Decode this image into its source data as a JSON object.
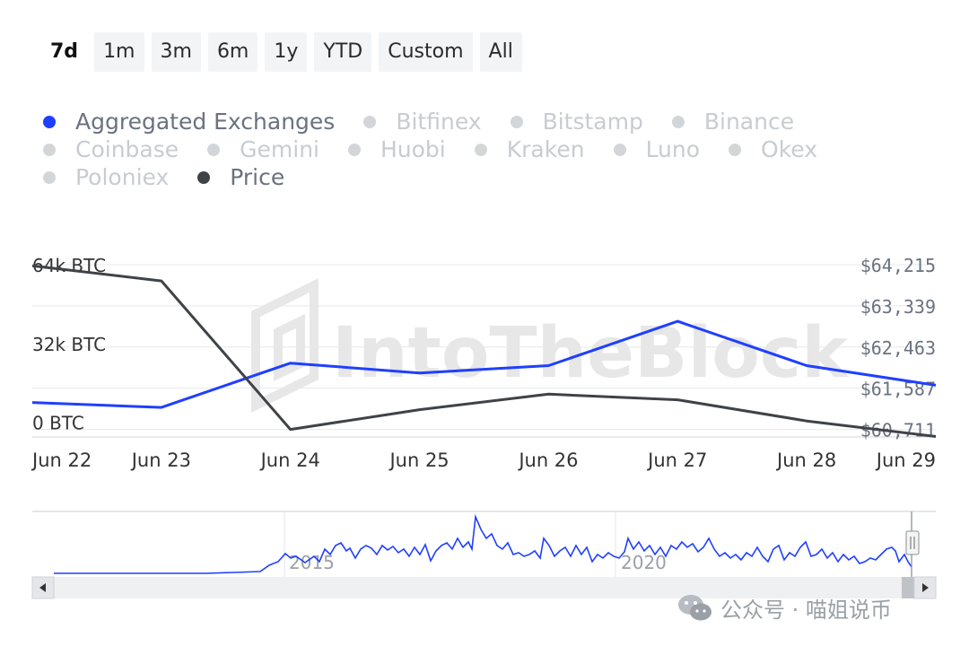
{
  "range_buttons": [
    "7d",
    "1m",
    "3m",
    "6m",
    "1y",
    "YTD",
    "Custom",
    "All"
  ],
  "active_range": "7d",
  "legend": [
    [
      {
        "label": "Aggregated Exchanges",
        "color": "#1f3fff",
        "on": true
      },
      {
        "label": "Bitfinex",
        "on": false
      },
      {
        "label": "Bitstamp",
        "on": false
      },
      {
        "label": "Binance",
        "on": false
      }
    ],
    [
      {
        "label": "Coinbase",
        "on": false
      },
      {
        "label": "Gemini",
        "on": false
      },
      {
        "label": "Huobi",
        "on": false
      },
      {
        "label": "Kraken",
        "on": false
      },
      {
        "label": "Luno",
        "on": false
      },
      {
        "label": "Okex",
        "on": false
      }
    ],
    [
      {
        "label": "Poloniex",
        "on": false
      },
      {
        "label": "Price",
        "color": "#3f4347",
        "on": true
      }
    ]
  ],
  "watermark": "IntoTheBlock",
  "credit": "公众号 · 喵姐说币",
  "navigator_labels": [
    "2015",
    "2020"
  ],
  "chart_data": {
    "type": "line",
    "x": [
      "Jun 22",
      "Jun 23",
      "Jun 24",
      "Jun 25",
      "Jun 26",
      "Jun 27",
      "Jun 28",
      "Jun 29"
    ],
    "series": [
      {
        "name": "Aggregated Exchanges",
        "axis": "left",
        "color": "#1f3fff",
        "values": [
          8000,
          6000,
          24000,
          20000,
          23000,
          41000,
          23000,
          15000
        ]
      },
      {
        "name": "Price",
        "axis": "right",
        "color": "#3f4347",
        "values": [
          64190,
          63870,
          60710,
          61130,
          61460,
          61340,
          60890,
          60560
        ]
      }
    ],
    "left_axis": {
      "ticks": [
        0,
        32000,
        64000
      ],
      "tick_labels": [
        "0 BTC",
        "32k BTC",
        "64k BTC"
      ],
      "range": [
        -6000,
        64000
      ]
    },
    "right_axis": {
      "ticks": [
        60711,
        61587,
        62463,
        63339,
        64215
      ],
      "tick_labels": [
        "$60,711",
        "$61,587",
        "$62,463",
        "$63,339",
        "$64,215"
      ],
      "range": [
        60550,
        64215
      ]
    },
    "grid": true
  }
}
